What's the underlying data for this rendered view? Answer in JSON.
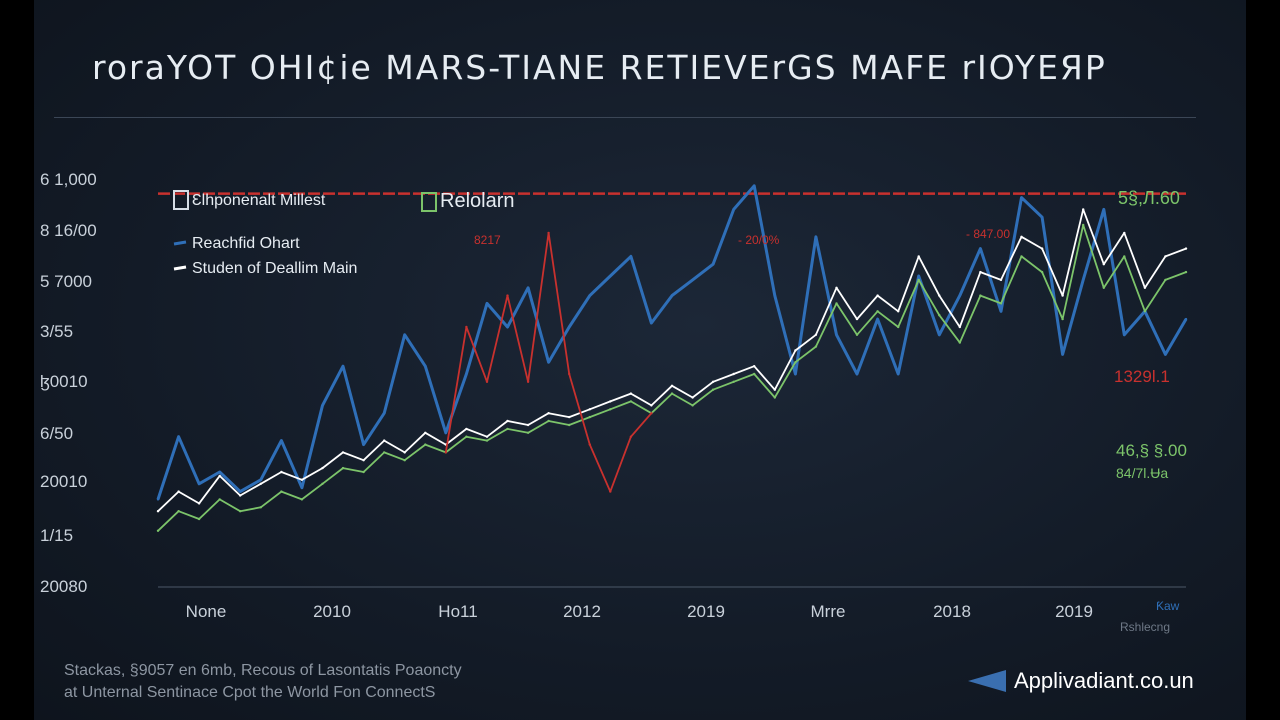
{
  "title": "roraYOT OHI¢ie MARS-TIANE RETIEVErGS MAFE rIOYEЯP",
  "footnote": {
    "line1": "Stackas, §9057 en 6mb, Recous of Lasontatis Poaoncty",
    "line2": "at Unternal Sentinace Cpot the World Fon ConnectS"
  },
  "brand": {
    "label": "Applivadiant.co.un",
    "icon": "play-triangle-icon"
  },
  "chart_data": {
    "type": "line",
    "title": "roraYOT OHI¢ie MARS-TIANE RETIEVErGS MAFE rIOYEЯP",
    "xlabel": "",
    "ylabel": "",
    "x_tick_labels": [
      "None",
      "2010",
      "Ho11",
      "2012",
      "2019",
      "Mrre",
      "2018",
      "2019"
    ],
    "y_tick_labels": [
      "6 1,000",
      "8 16/00",
      "5 7000",
      "3/55",
      "ɮ0010",
      "6/50",
      "20010",
      "1/15",
      "20080"
    ],
    "legend": [
      {
        "label": "Ɛlhponenalt Millest",
        "icon": "legend-box-icon",
        "color": "#d6dde6"
      },
      {
        "label": "Relolarn",
        "icon": "legend-box-icon",
        "color": "#7cc46a"
      },
      {
        "label": "Reachfid Ohart",
        "icon": "line-swatch-icon",
        "color": "#2f6fb8"
      },
      {
        "label": "Studen of Deallim Main",
        "icon": "line-swatch-icon",
        "color": "#ffffff"
      }
    ],
    "reference_line": {
      "color": "#c8312e",
      "value": 0.96
    },
    "annotations": [
      {
        "text": "8217",
        "color": "#c8312e"
      },
      {
        "text": "- 20/0%",
        "color": "#c8312e"
      },
      {
        "text": "- 847.00",
        "color": "#c8312e"
      },
      {
        "text": "5§,Л.60",
        "color": "#7cc46a"
      },
      {
        "text": "1329l.1",
        "color": "#c8312e"
      },
      {
        "text": "46,§ §.00",
        "color": "#7cc46a"
      },
      {
        "text": "84/7l.Ʉa",
        "color": "#7cc46a"
      },
      {
        "text": "Ƙaw",
        "color": "#2f6fb8"
      },
      {
        "text": "Rshlecng",
        "color": "#6e7886"
      }
    ],
    "grid": false,
    "x": [
      0,
      2,
      4,
      6,
      8,
      10,
      12,
      14,
      16,
      18,
      20,
      22,
      24,
      26,
      28,
      30,
      32,
      34,
      36,
      38,
      40,
      42,
      44,
      46,
      48,
      50,
      52,
      54,
      56,
      58,
      60,
      62,
      64,
      66,
      68,
      70,
      72,
      74,
      76,
      78,
      80,
      82,
      84,
      86,
      88,
      90,
      92,
      94,
      96,
      98,
      100
    ],
    "series": [
      {
        "name": "Reachfid Ohart",
        "color": "#2f6fb8",
        "values": [
          0.18,
          0.34,
          0.22,
          0.25,
          0.2,
          0.23,
          0.33,
          0.21,
          0.42,
          0.52,
          0.32,
          0.4,
          0.6,
          0.52,
          0.35,
          0.5,
          0.68,
          0.62,
          0.72,
          0.53,
          0.62,
          0.7,
          0.75,
          0.8,
          0.63,
          0.7,
          0.74,
          0.78,
          0.92,
          0.98,
          0.7,
          0.5,
          0.85,
          0.6,
          0.5,
          0.64,
          0.5,
          0.75,
          0.6,
          0.7,
          0.82,
          0.66,
          0.95,
          0.9,
          0.55,
          0.74,
          0.92,
          0.6,
          0.66,
          0.55,
          0.64
        ]
      },
      {
        "name": "Studen of Deallim Main",
        "color": "#ffffff",
        "values": [
          0.15,
          0.2,
          0.17,
          0.24,
          0.19,
          0.22,
          0.25,
          0.23,
          0.26,
          0.3,
          0.28,
          0.33,
          0.3,
          0.35,
          0.32,
          0.36,
          0.34,
          0.38,
          0.37,
          0.4,
          0.39,
          0.41,
          0.43,
          0.45,
          0.42,
          0.47,
          0.44,
          0.48,
          0.5,
          0.52,
          0.46,
          0.56,
          0.6,
          0.72,
          0.64,
          0.7,
          0.66,
          0.8,
          0.7,
          0.62,
          0.76,
          0.74,
          0.85,
          0.82,
          0.7,
          0.92,
          0.78,
          0.86,
          0.72,
          0.8,
          0.82
        ]
      },
      {
        "name": "Relolarn",
        "color": "#7cc46a",
        "values": [
          0.1,
          0.15,
          0.13,
          0.18,
          0.15,
          0.16,
          0.2,
          0.18,
          0.22,
          0.26,
          0.25,
          0.3,
          0.28,
          0.32,
          0.3,
          0.34,
          0.33,
          0.36,
          0.35,
          0.38,
          0.37,
          0.39,
          0.41,
          0.43,
          0.4,
          0.45,
          0.42,
          0.46,
          0.48,
          0.5,
          0.44,
          0.53,
          0.57,
          0.68,
          0.6,
          0.66,
          0.62,
          0.74,
          0.65,
          0.58,
          0.7,
          0.68,
          0.8,
          0.76,
          0.64,
          0.88,
          0.72,
          0.8,
          0.66,
          0.74,
          0.76
        ]
      },
      {
        "name": "",
        "color": "#c8312e",
        "values": [
          null,
          null,
          null,
          null,
          null,
          null,
          null,
          null,
          null,
          null,
          null,
          null,
          null,
          null,
          0.3,
          0.62,
          0.48,
          0.7,
          0.48,
          0.86,
          0.5,
          0.32,
          0.2,
          0.34,
          0.4,
          null,
          null,
          null,
          null,
          null,
          null,
          null,
          null,
          null,
          null,
          null,
          null,
          null,
          null,
          null,
          null,
          null,
          null,
          null,
          null,
          null,
          null,
          null,
          null,
          null,
          null
        ]
      }
    ]
  }
}
